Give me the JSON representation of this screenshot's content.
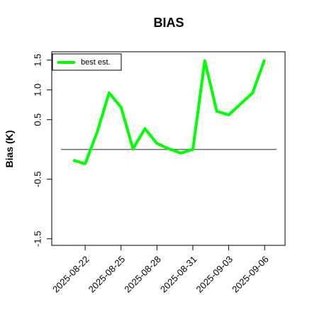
{
  "chart_data": {
    "type": "line",
    "title": "BIAS",
    "y_label": "Bias (K)",
    "x": [
      "2025-08-21",
      "2025-08-22",
      "2025-08-23",
      "2025-08-24",
      "2025-08-25",
      "2025-08-26",
      "2025-08-27",
      "2025-08-28",
      "2025-08-29",
      "2025-08-30",
      "2025-08-31",
      "2025-09-01",
      "2025-09-02",
      "2025-09-03",
      "2025-09-05",
      "2025-09-06"
    ],
    "series": [
      {
        "name": "best est.",
        "color": "#00ff00",
        "values": [
          -0.18,
          -0.24,
          0.29,
          0.95,
          0.71,
          0.01,
          0.35,
          0.1,
          0.01,
          -0.06,
          0.0,
          1.49,
          0.64,
          0.58,
          0.95,
          1.51
        ]
      }
    ],
    "xlim": [
      "2025-08-19T05:00",
      "2025-09-07T17:00"
    ],
    "xticks": [
      "2025-08-22",
      "2025-08-25",
      "2025-08-28",
      "2025-08-31",
      "2025-09-03",
      "2025-09-06"
    ],
    "ylim": [
      -1.61,
      1.64
    ],
    "yticks": [
      -1.5,
      -0.5,
      0.5,
      {
        "value": 1,
        "label": "1.0"
      },
      1.5
    ],
    "hline": 0,
    "hline_color": "#555555",
    "legend": "top-left"
  }
}
